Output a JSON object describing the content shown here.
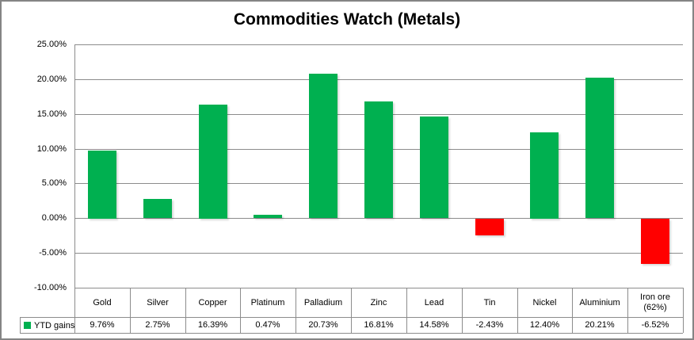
{
  "chart_data": {
    "type": "bar",
    "title": "Commodities Watch (Metals)",
    "categories": [
      "Gold",
      "Silver",
      "Copper",
      "Platinum",
      "Palladium",
      "Zinc",
      "Lead",
      "Tin",
      "Nickel",
      "Aluminium",
      "Iron ore (62%)"
    ],
    "series": [
      {
        "name": "YTD gains",
        "values": [
          9.76,
          2.75,
          16.39,
          0.47,
          20.73,
          16.81,
          14.58,
          -2.43,
          12.4,
          20.21,
          -6.52
        ],
        "value_labels": [
          "9.76%",
          "2.75%",
          "16.39%",
          "0.47%",
          "20.73%",
          "16.81%",
          "14.58%",
          "-2.43%",
          "12.40%",
          "20.21%",
          "-6.52%"
        ]
      }
    ],
    "xlabel": "",
    "ylabel": "",
    "ylim": [
      -10,
      25
    ],
    "grid": true,
    "legend_position": "data-table-left",
    "yticks": [
      {
        "value": 25,
        "label": "25.00%"
      },
      {
        "value": 20,
        "label": "20.00%"
      },
      {
        "value": 15,
        "label": "15.00%"
      },
      {
        "value": 10,
        "label": "10.00%"
      },
      {
        "value": 5,
        "label": "5.00%"
      },
      {
        "value": 0,
        "label": "0.00%"
      },
      {
        "value": -5,
        "label": "-5.00%"
      },
      {
        "value": -10,
        "label": "-10.00%"
      }
    ],
    "colors": {
      "positive_bar": "#00B050",
      "negative_bar": "#FF0000",
      "gridline": "#8C8C8C",
      "table_border": "#8C8C8C",
      "outer_border": "#858585",
      "text": "#000000",
      "background": "#FFFFFF"
    }
  }
}
